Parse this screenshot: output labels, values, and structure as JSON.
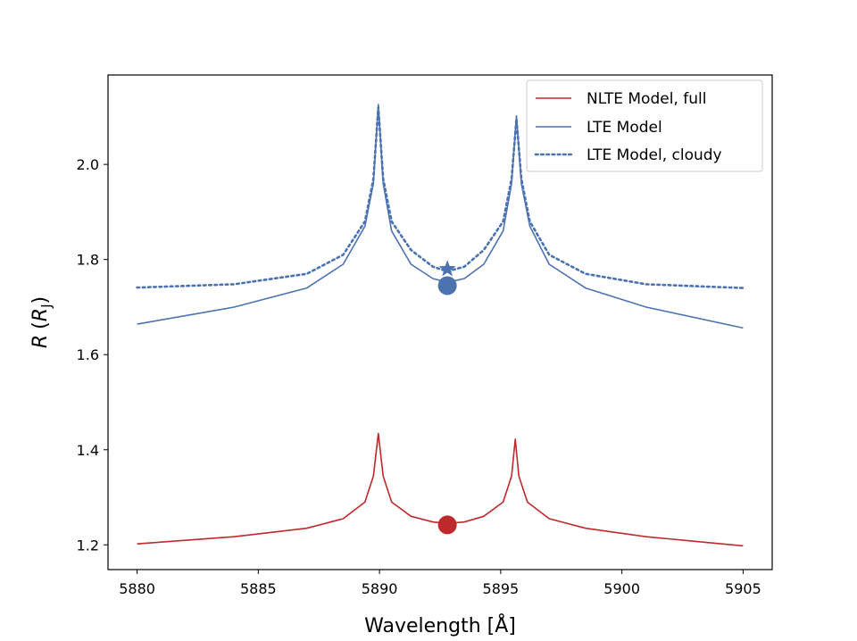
{
  "chart_data": {
    "type": "line",
    "xlabel": "Wavelength [Å]",
    "ylabel_main": "R",
    "ylabel_paren_open": "(",
    "ylabel_unit": "R",
    "ylabel_unit_sub": "J",
    "ylabel_paren_close": ")",
    "xlim": [
      5878.8,
      5906.2
    ],
    "ylim": [
      1.148,
      2.188
    ],
    "xticks": [
      5880,
      5885,
      5890,
      5895,
      5900,
      5905
    ],
    "xtick_labels": [
      "5880",
      "5885",
      "5890",
      "5895",
      "5900",
      "5905"
    ],
    "yticks": [
      1.2,
      1.4,
      1.6,
      1.8,
      2.0
    ],
    "ytick_labels": [
      "1.2",
      "1.4",
      "1.6",
      "1.8",
      "2.0"
    ],
    "grid": false,
    "legend_position": "top-right",
    "series": [
      {
        "name": "NLTE Model, full",
        "color": "#c0292b",
        "style": "solid",
        "x": [
          5880,
          5884,
          5887,
          5888.5,
          5889.4,
          5889.75,
          5889.95,
          5890.15,
          5890.5,
          5891.3,
          5892.2,
          5892.8,
          5893.5,
          5894.3,
          5895.1,
          5895.45,
          5895.6,
          5895.75,
          5896.1,
          5897,
          5898.5,
          5901,
          5905
        ],
        "y": [
          1.202,
          1.217,
          1.235,
          1.255,
          1.29,
          1.345,
          1.434,
          1.345,
          1.29,
          1.26,
          1.248,
          1.245,
          1.248,
          1.26,
          1.29,
          1.345,
          1.422,
          1.345,
          1.29,
          1.255,
          1.235,
          1.217,
          1.198
        ]
      },
      {
        "name": "LTE Model",
        "color": "#4c72b0",
        "style": "solid",
        "x": [
          5880,
          5884,
          5887,
          5888.5,
          5889.4,
          5889.75,
          5889.95,
          5890.15,
          5890.5,
          5891.3,
          5892.2,
          5892.8,
          5893.5,
          5894.3,
          5895.1,
          5895.45,
          5895.65,
          5895.85,
          5896.2,
          5897,
          5898.5,
          5901,
          5905
        ],
        "y": [
          1.664,
          1.7,
          1.74,
          1.79,
          1.87,
          1.96,
          2.126,
          1.96,
          1.86,
          1.79,
          1.76,
          1.752,
          1.76,
          1.79,
          1.86,
          1.96,
          2.102,
          1.96,
          1.87,
          1.79,
          1.74,
          1.7,
          1.656
        ]
      },
      {
        "name": "LTE Model, cloudy",
        "color": "#4c72b0",
        "style": "dotted",
        "x": [
          5880,
          5884,
          5887,
          5888.5,
          5889.4,
          5889.75,
          5889.95,
          5890.15,
          5890.5,
          5891.3,
          5892.2,
          5892.8,
          5893.5,
          5894.3,
          5895.1,
          5895.45,
          5895.65,
          5895.85,
          5896.2,
          5897,
          5898.5,
          5901,
          5905
        ],
        "y": [
          1.741,
          1.748,
          1.77,
          1.81,
          1.88,
          1.97,
          2.12,
          1.97,
          1.88,
          1.82,
          1.785,
          1.775,
          1.785,
          1.82,
          1.88,
          1.97,
          2.096,
          1.97,
          1.88,
          1.81,
          1.77,
          1.748,
          1.74
        ]
      }
    ],
    "markers": [
      {
        "shape": "circle",
        "x": 5892.8,
        "y": 1.242,
        "color": "#c0292b"
      },
      {
        "shape": "circle",
        "x": 5892.8,
        "y": 1.745,
        "color": "#4c72b0"
      },
      {
        "shape": "star",
        "x": 5892.8,
        "y": 1.78,
        "color": "#4c72b0"
      }
    ]
  }
}
